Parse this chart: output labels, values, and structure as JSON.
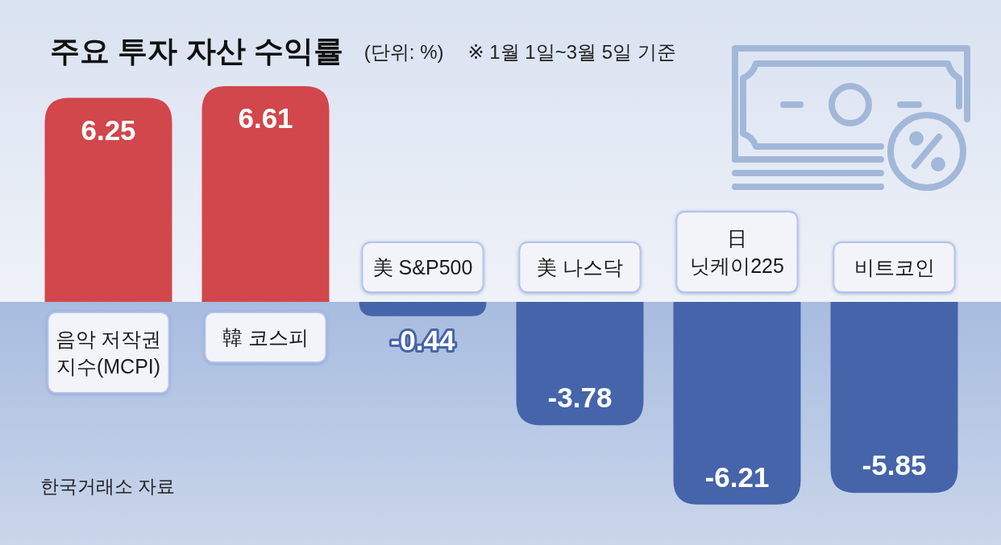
{
  "chart_data": {
    "type": "bar",
    "title": "주요 투자 자산 수익률",
    "subtitle": "(단위: %)",
    "categories": [
      "음악 저작권\n지수(MCPI)",
      "韓 코스피",
      "美 S&P500",
      "美 나스닥",
      "日\n닛케이225",
      "비트코인"
    ],
    "values": [
      6.25,
      6.61,
      -0.44,
      -3.78,
      -6.21,
      -5.85
    ],
    "colors": [
      "#d1474b",
      "#d1474b",
      "#4564aa",
      "#4564aa",
      "#4564aa",
      "#4564aa"
    ],
    "data_labels": true,
    "annotations": [
      "※ 1월 1일~3월 5일 기준",
      "한국거래소 자료"
    ]
  }
}
